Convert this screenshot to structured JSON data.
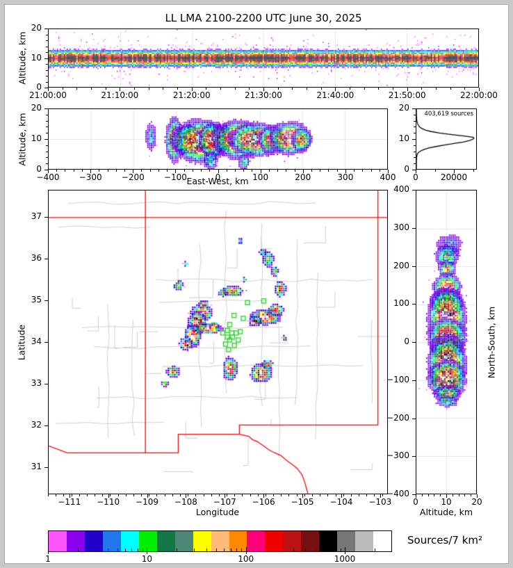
{
  "chart_data": {
    "type": "heatmap",
    "title": "LL LMA 2100-2200 UTC June 30, 2025",
    "colormap": [
      "#ff55ff",
      "#8800ee",
      "#2200cc",
      "#2277ee",
      "#00ffff",
      "#00ee00",
      "#117744",
      "#4d8877",
      "#ffff00",
      "#ffbb77",
      "#ff8800",
      "#ff0077",
      "#ee0000",
      "#bb1111",
      "#771111",
      "#000000",
      "#777777",
      "#bbbbbb",
      "#ffffff"
    ],
    "colorbar": {
      "label": "Sources/7 km²",
      "scale": "log",
      "range": [
        1,
        3000
      ],
      "tick_values": [
        1,
        10,
        100,
        1000
      ],
      "tick_labels": [
        "1",
        "10",
        "100",
        "1000"
      ]
    },
    "panels": {
      "time_height": {
        "ylabel": "Altitude, km",
        "xtick_labels": [
          "21:00:00",
          "21:10:00",
          "21:20:00",
          "21:30:00",
          "21:40:00",
          "21:50:00",
          "22:00:00"
        ],
        "xtick_values": [
          0,
          600,
          1200,
          1800,
          2400,
          3000,
          3600
        ],
        "xrange_s": [
          0,
          3600
        ],
        "ytick_values": [
          0,
          10,
          20
        ],
        "ytick_labels": [
          "0",
          "10",
          "20"
        ],
        "yrange": [
          0,
          20
        ],
        "band": {
          "center_km": 10.1,
          "sigma_km": 2.0
        }
      },
      "east_west": {
        "xlabel": "East-West, km",
        "ylabel": "Altitude, km",
        "xtick_values": [
          -400,
          -300,
          -200,
          -100,
          0,
          100,
          200,
          300,
          400
        ],
        "xtick_labels": [
          "−400",
          "−300",
          "−200",
          "−100",
          "0",
          "100",
          "200",
          "300",
          "400"
        ],
        "xrange": [
          -400,
          400
        ],
        "ytick_values": [
          0,
          10,
          20
        ],
        "ytick_labels": [
          "0",
          "10",
          "20"
        ],
        "yrange": [
          0,
          20
        ],
        "clusters": [
          [
            -105,
            10,
            6,
            5,
            0.7
          ],
          [
            -75,
            10,
            12,
            3,
            0.85
          ],
          [
            -42,
            9.5,
            18,
            4.5,
            1.0
          ],
          [
            -15,
            10,
            9,
            3.5,
            0.92
          ],
          [
            8,
            10.5,
            7,
            3,
            0.85
          ],
          [
            45,
            10,
            15,
            4,
            1.0
          ],
          [
            88,
            10,
            18,
            3.5,
            0.97
          ],
          [
            128,
            10,
            10,
            3,
            0.8
          ],
          [
            168,
            10.5,
            14,
            3.5,
            0.9
          ],
          [
            196,
            10,
            7,
            2.5,
            0.72
          ],
          [
            -160,
            11,
            5,
            4,
            0.22
          ],
          [
            -20,
            3,
            6,
            2.5,
            0.3
          ],
          [
            60,
            2.5,
            5,
            2,
            0.28
          ]
        ]
      },
      "histogram": {
        "annotation": "403,619 sources",
        "xtick_values": [
          0,
          20000
        ],
        "xtick_labels": [
          "0",
          "20000"
        ],
        "xrange": [
          0,
          32000
        ],
        "ytick_values": [
          0,
          10,
          20
        ],
        "ytick_labels": [
          "0",
          "10",
          "20"
        ],
        "yrange": [
          0,
          20
        ],
        "curve_alt_km": [
          0,
          2,
          3,
          4,
          5,
          5.5,
          6,
          6.5,
          7,
          7.5,
          8,
          8.5,
          9,
          9.5,
          10,
          10.3,
          10.6,
          11,
          11.5,
          12,
          12.5,
          13,
          13.5,
          14,
          15,
          16,
          17,
          18,
          19,
          20
        ],
        "curve_counts": [
          0,
          5,
          30,
          120,
          500,
          1100,
          2200,
          4000,
          6500,
          10500,
          15000,
          20000,
          25000,
          28500,
          30400,
          30800,
          30200,
          25500,
          19000,
          12500,
          8000,
          4800,
          3000,
          1800,
          700,
          260,
          100,
          45,
          15,
          5
        ]
      },
      "map": {
        "xlabel": "Longitude",
        "ylabel": "Latitude",
        "xtick_values": [
          -111,
          -110,
          -109,
          -108,
          -107,
          -106,
          -105,
          -104,
          -103
        ],
        "xtick_labels": [
          "−111",
          "−110",
          "−109",
          "−108",
          "−107",
          "−106",
          "−105",
          "−104",
          "−103"
        ],
        "ytick_values": [
          31,
          32,
          33,
          34,
          35,
          36,
          37
        ],
        "ytick_labels": [
          "31",
          "32",
          "33",
          "34",
          "35",
          "36",
          "37"
        ],
        "lon_range": [
          -111.55,
          -102.8
        ],
        "lat_range": [
          30.35,
          37.65
        ],
        "border_color": "#ff0000",
        "county_color": "#cfcfcf",
        "station_color": "#33dd33",
        "state_lines": [
          [
            [
              -111.55,
              37
            ],
            [
              -102.8,
              37
            ]
          ],
          [
            [
              -109.05,
              37.65
            ],
            [
              -109.05,
              31.33
            ]
          ],
          [
            [
              -103.04,
              37.65
            ],
            [
              -103.04,
              32.0
            ],
            [
              -106.62,
              32.0
            ],
            [
              -106.62,
              31.78
            ],
            [
              -108.2,
              31.78
            ],
            [
              -108.2,
              31.33
            ],
            [
              -111.07,
              31.33
            ],
            [
              -111.55,
              31.5
            ]
          ],
          [
            [
              -106.62,
              31.78
            ],
            [
              -106.48,
              31.75
            ],
            [
              -106.38,
              31.73
            ],
            [
              -106.28,
              31.65
            ],
            [
              -106.15,
              31.6
            ],
            [
              -106.0,
              31.5
            ],
            [
              -105.85,
              31.4
            ],
            [
              -105.7,
              31.33
            ],
            [
              -105.55,
              31.27
            ],
            [
              -105.4,
              31.15
            ],
            [
              -105.25,
              31.05
            ],
            [
              -105.12,
              30.95
            ],
            [
              -105.0,
              30.8
            ],
            [
              -104.93,
              30.62
            ],
            [
              -104.88,
              30.45
            ],
            [
              -104.85,
              30.35
            ]
          ]
        ],
        "clusters": [
          [
            -107.62,
            34.72,
            0.17,
            0.13,
            1.0
          ],
          [
            -107.73,
            34.5,
            0.15,
            0.15,
            0.98
          ],
          [
            -107.85,
            34.17,
            0.13,
            0.17,
            1.0
          ],
          [
            -107.47,
            34.34,
            0.24,
            0.08,
            0.95
          ],
          [
            -108.02,
            33.98,
            0.11,
            0.1,
            0.88
          ],
          [
            -107.56,
            34.92,
            0.09,
            0.07,
            0.72
          ],
          [
            -107.3,
            34.42,
            0.08,
            0.06,
            0.8
          ],
          [
            -105.97,
            34.62,
            0.25,
            0.12,
            0.97
          ],
          [
            -105.7,
            34.79,
            0.13,
            0.09,
            0.85
          ],
          [
            -106.24,
            34.52,
            0.11,
            0.08,
            0.8
          ],
          [
            -106.82,
            35.25,
            0.17,
            0.08,
            0.85
          ],
          [
            -107.07,
            35.21,
            0.08,
            0.06,
            0.7
          ],
          [
            -105.58,
            35.3,
            0.09,
            0.12,
            0.85
          ],
          [
            -105.9,
            36.02,
            0.11,
            0.14,
            0.45
          ],
          [
            -105.73,
            35.73,
            0.07,
            0.09,
            0.5
          ],
          [
            -106.03,
            36.18,
            0.08,
            0.06,
            0.4
          ],
          [
            -108.22,
            35.38,
            0.08,
            0.08,
            0.6
          ],
          [
            -108.02,
            35.9,
            0.05,
            0.04,
            0.35
          ],
          [
            -106.88,
            33.38,
            0.12,
            0.17,
            1.0
          ],
          [
            -106.08,
            33.27,
            0.17,
            0.14,
            0.97
          ],
          [
            -105.92,
            33.48,
            0.09,
            0.07,
            0.75
          ],
          [
            -108.35,
            33.3,
            0.11,
            0.09,
            0.75
          ],
          [
            -108.57,
            33.02,
            0.07,
            0.05,
            0.55
          ],
          [
            -105.47,
            34.12,
            0.05,
            0.04,
            0.45
          ],
          [
            -106.62,
            36.45,
            0.05,
            0.06,
            0.3
          ],
          [
            -106.5,
            35.52,
            0.05,
            0.04,
            0.4
          ]
        ],
        "stations": [
          [
            -106.41,
            34.95
          ],
          [
            -106.74,
            35.17
          ],
          [
            -105.99,
            34.99
          ],
          [
            -106.76,
            34.64
          ],
          [
            -106.52,
            34.57
          ],
          [
            -106.87,
            34.42
          ],
          [
            -107.05,
            34.22
          ],
          [
            -106.93,
            34.28
          ],
          [
            -106.82,
            34.22
          ],
          [
            -106.7,
            34.22
          ],
          [
            -106.6,
            34.25
          ],
          [
            -106.93,
            34.12
          ],
          [
            -106.87,
            34.05
          ],
          [
            -106.8,
            34.12
          ],
          [
            -106.98,
            33.95
          ],
          [
            -106.9,
            33.82
          ],
          [
            -106.75,
            33.92
          ],
          [
            -106.65,
            34.05
          ]
        ]
      },
      "north_south": {
        "xlabel": "Altitude, km",
        "ylabel": "North-South, km",
        "xtick_values": [
          0,
          10,
          20
        ],
        "xtick_labels": [
          "0",
          "10",
          "20"
        ],
        "ytick_values": [
          400,
          300,
          200,
          100,
          0,
          -100,
          -200,
          -300,
          -400
        ],
        "ytick_labels": [
          "400",
          "300",
          "200",
          "100",
          "0",
          "−100",
          "−200",
          "−300",
          "−400"
        ],
        "xrange": [
          0,
          20
        ],
        "yrange": [
          -400,
          400
        ],
        "clusters": [
          [
            258,
            11,
            12,
            4,
            0.18
          ],
          [
            230,
            10,
            10,
            3,
            0.38
          ],
          [
            196,
            10,
            7,
            2,
            0.55
          ],
          [
            145,
            10,
            11,
            3,
            0.85
          ],
          [
            107,
            10,
            10,
            3.5,
            0.9
          ],
          [
            65,
            10,
            22,
            4,
            0.97
          ],
          [
            15,
            10,
            14,
            4,
            1.0
          ],
          [
            -12,
            10,
            10,
            3.5,
            0.95
          ],
          [
            -55,
            10,
            20,
            4,
            0.97
          ],
          [
            -95,
            10,
            14,
            4,
            1.0
          ],
          [
            -135,
            10,
            7,
            3,
            0.55
          ],
          [
            -155,
            10,
            5,
            3,
            0.3
          ]
        ]
      }
    }
  }
}
